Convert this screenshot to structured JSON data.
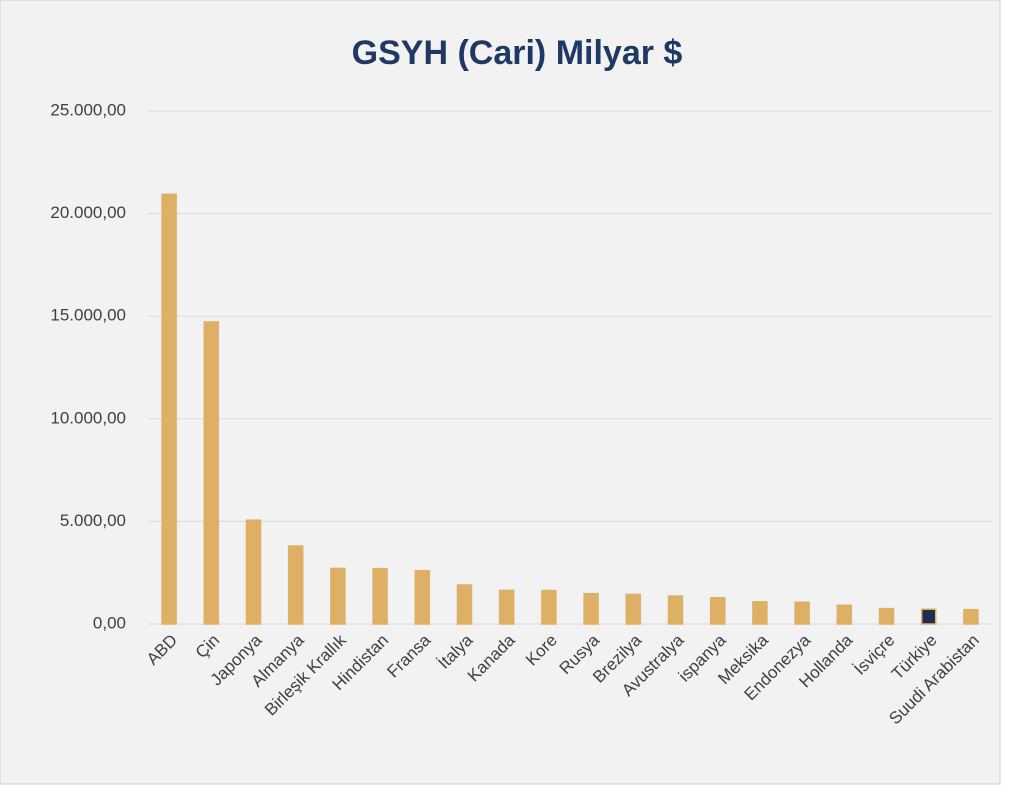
{
  "chart_data": {
    "type": "bar",
    "title": "GSYH (Cari) Milyar $",
    "categories": [
      "ABD",
      "Çin",
      "Japonya",
      "Almanya",
      "Birleşik Krallık",
      "Hindistan",
      "Fransa",
      "İtalya",
      "Kanada",
      "Kore",
      "Rusya",
      "Brezilya",
      "Avustralya",
      "ispanya",
      "Meksika",
      "Endonezya",
      "Hollanda",
      "İsviçre",
      "Türkiye",
      "Suudi Arabistan"
    ],
    "values": [
      20940,
      14720,
      5060,
      3800,
      2710,
      2700,
      2600,
      1900,
      1640,
      1630,
      1480,
      1440,
      1360,
      1280,
      1080,
      1060,
      910,
      750,
      720,
      700
    ],
    "colors": [
      "#ddb066",
      "#ddb066",
      "#ddb066",
      "#ddb066",
      "#ddb066",
      "#ddb066",
      "#ddb066",
      "#ddb066",
      "#ddb066",
      "#ddb066",
      "#ddb066",
      "#ddb066",
      "#ddb066",
      "#ddb066",
      "#ddb066",
      "#ddb066",
      "#ddb066",
      "#ddb066",
      "#1f2d4e",
      "#ddb066"
    ],
    "ylim": [
      0,
      25000
    ],
    "yticks": [
      {
        "value": 0,
        "label": "0,00"
      },
      {
        "value": 5000,
        "label": "5.000,00"
      },
      {
        "value": 10000,
        "label": "10.000,00"
      },
      {
        "value": 15000,
        "label": "15.000,00"
      },
      {
        "value": 20000,
        "label": "20.000,00"
      },
      {
        "value": 25000,
        "label": "25.000,00"
      }
    ],
    "grid": true
  }
}
